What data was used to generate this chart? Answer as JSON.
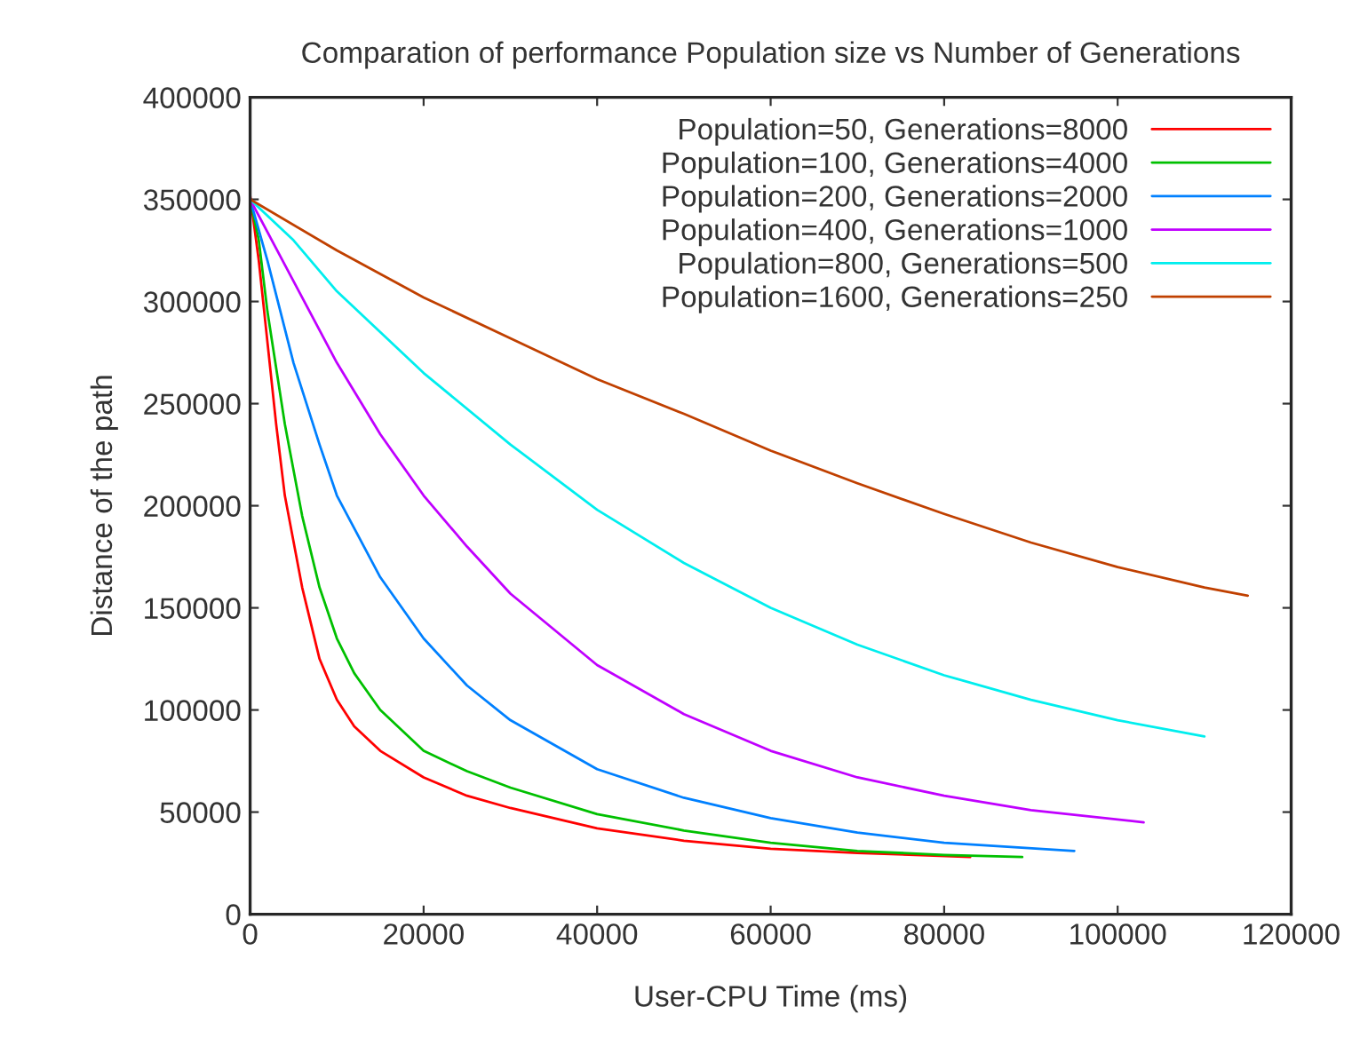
{
  "chart_data": {
    "type": "line",
    "title": "Comparation of performance Population size vs Number of Generations",
    "xlabel": "User-CPU Time (ms)",
    "ylabel": "Distance of the path",
    "xlim": [
      0,
      120000
    ],
    "xticks": [
      0,
      20000,
      40000,
      60000,
      80000,
      100000,
      120000
    ],
    "ylim": [
      0,
      400000
    ],
    "yticks": [
      0,
      50000,
      100000,
      150000,
      200000,
      250000,
      300000,
      350000,
      400000
    ],
    "grid": false,
    "legend": "top right",
    "marker": "none",
    "line_style": "solid",
    "series": [
      {
        "name": "Population=50, Generations=8000",
        "color": "#ff0000",
        "x": [
          0,
          1000,
          2000,
          3000,
          4000,
          6000,
          8000,
          10000,
          12000,
          15000,
          20000,
          25000,
          30000,
          40000,
          50000,
          60000,
          70000,
          83000
        ],
        "values": [
          352000,
          320000,
          280000,
          240000,
          205000,
          160000,
          125000,
          105000,
          92000,
          80000,
          67000,
          58000,
          52000,
          42000,
          36000,
          32000,
          30000,
          28000
        ]
      },
      {
        "name": "Population=100, Generations=4000",
        "color": "#00c000",
        "x": [
          0,
          1000,
          2000,
          4000,
          6000,
          8000,
          10000,
          12000,
          15000,
          20000,
          25000,
          30000,
          40000,
          50000,
          60000,
          70000,
          80000,
          89000
        ],
        "values": [
          350000,
          330000,
          295000,
          240000,
          195000,
          160000,
          135000,
          118000,
          100000,
          80000,
          70000,
          62000,
          49000,
          41000,
          35000,
          31000,
          29000,
          28000
        ]
      },
      {
        "name": "Population=200, Generations=2000",
        "color": "#0080ff",
        "x": [
          0,
          2000,
          5000,
          8000,
          10000,
          15000,
          20000,
          25000,
          30000,
          40000,
          50000,
          60000,
          70000,
          80000,
          95000
        ],
        "values": [
          350000,
          320000,
          270000,
          230000,
          205000,
          165000,
          135000,
          112000,
          95000,
          71000,
          57000,
          47000,
          40000,
          35000,
          31000
        ]
      },
      {
        "name": "Population=400, Generations=1000",
        "color": "#c000ff",
        "x": [
          0,
          5000,
          10000,
          15000,
          20000,
          25000,
          30000,
          40000,
          50000,
          60000,
          70000,
          80000,
          90000,
          103000
        ],
        "values": [
          350000,
          310000,
          270000,
          235000,
          205000,
          180000,
          157000,
          122000,
          98000,
          80000,
          67000,
          58000,
          51000,
          45000
        ]
      },
      {
        "name": "Population=800, Generations=500",
        "color": "#00eeee",
        "x": [
          0,
          5000,
          10000,
          20000,
          30000,
          40000,
          50000,
          60000,
          70000,
          80000,
          90000,
          100000,
          110000
        ],
        "values": [
          350000,
          330000,
          305000,
          265000,
          230000,
          198000,
          172000,
          150000,
          132000,
          117000,
          105000,
          95000,
          87000
        ]
      },
      {
        "name": "Population=1600, Generations=250",
        "color": "#c04000",
        "x": [
          0,
          10000,
          20000,
          30000,
          40000,
          50000,
          60000,
          70000,
          80000,
          90000,
          100000,
          110000,
          115000
        ],
        "values": [
          350000,
          325000,
          302000,
          282000,
          262000,
          245000,
          227000,
          211000,
          196000,
          182000,
          170000,
          160000,
          156000
        ]
      }
    ]
  }
}
